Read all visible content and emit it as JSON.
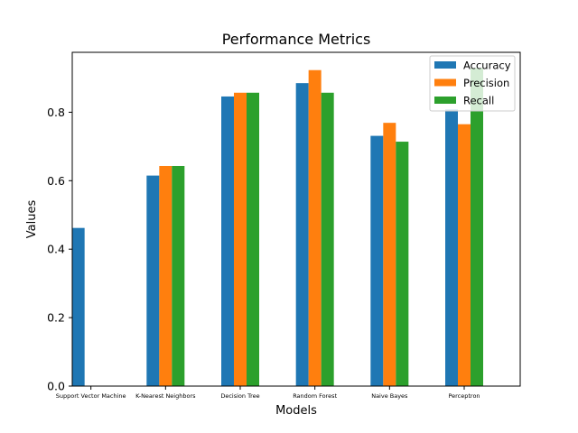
{
  "chart_data": {
    "type": "bar",
    "title": "Performance Metrics",
    "xlabel": "Models",
    "ylabel": "Values",
    "ylim": [
      0,
      0.975
    ],
    "yticks": [
      "0.0",
      "0.2",
      "0.4",
      "0.6",
      "0.8"
    ],
    "yticks_values": [
      0,
      0.2,
      0.4,
      0.6,
      0.8
    ],
    "categories": [
      "Support Vector Machine",
      "K-Nearest Neighbors",
      "Decision Tree",
      "Random Forest",
      "Naive Bayes",
      "Perceptron"
    ],
    "series": [
      {
        "name": "Accuracy",
        "color": "#1f77b4",
        "values": [
          0.462,
          0.615,
          0.846,
          0.885,
          0.731,
          0.808
        ]
      },
      {
        "name": "Precision",
        "color": "#ff7f0e",
        "values": [
          0.0,
          0.643,
          0.857,
          0.923,
          0.769,
          0.765
        ]
      },
      {
        "name": "Recall",
        "color": "#2ca02c",
        "values": [
          0.0,
          0.643,
          0.857,
          0.857,
          0.714,
          0.929
        ]
      }
    ],
    "legend_position": "top-right",
    "grid": false
  }
}
